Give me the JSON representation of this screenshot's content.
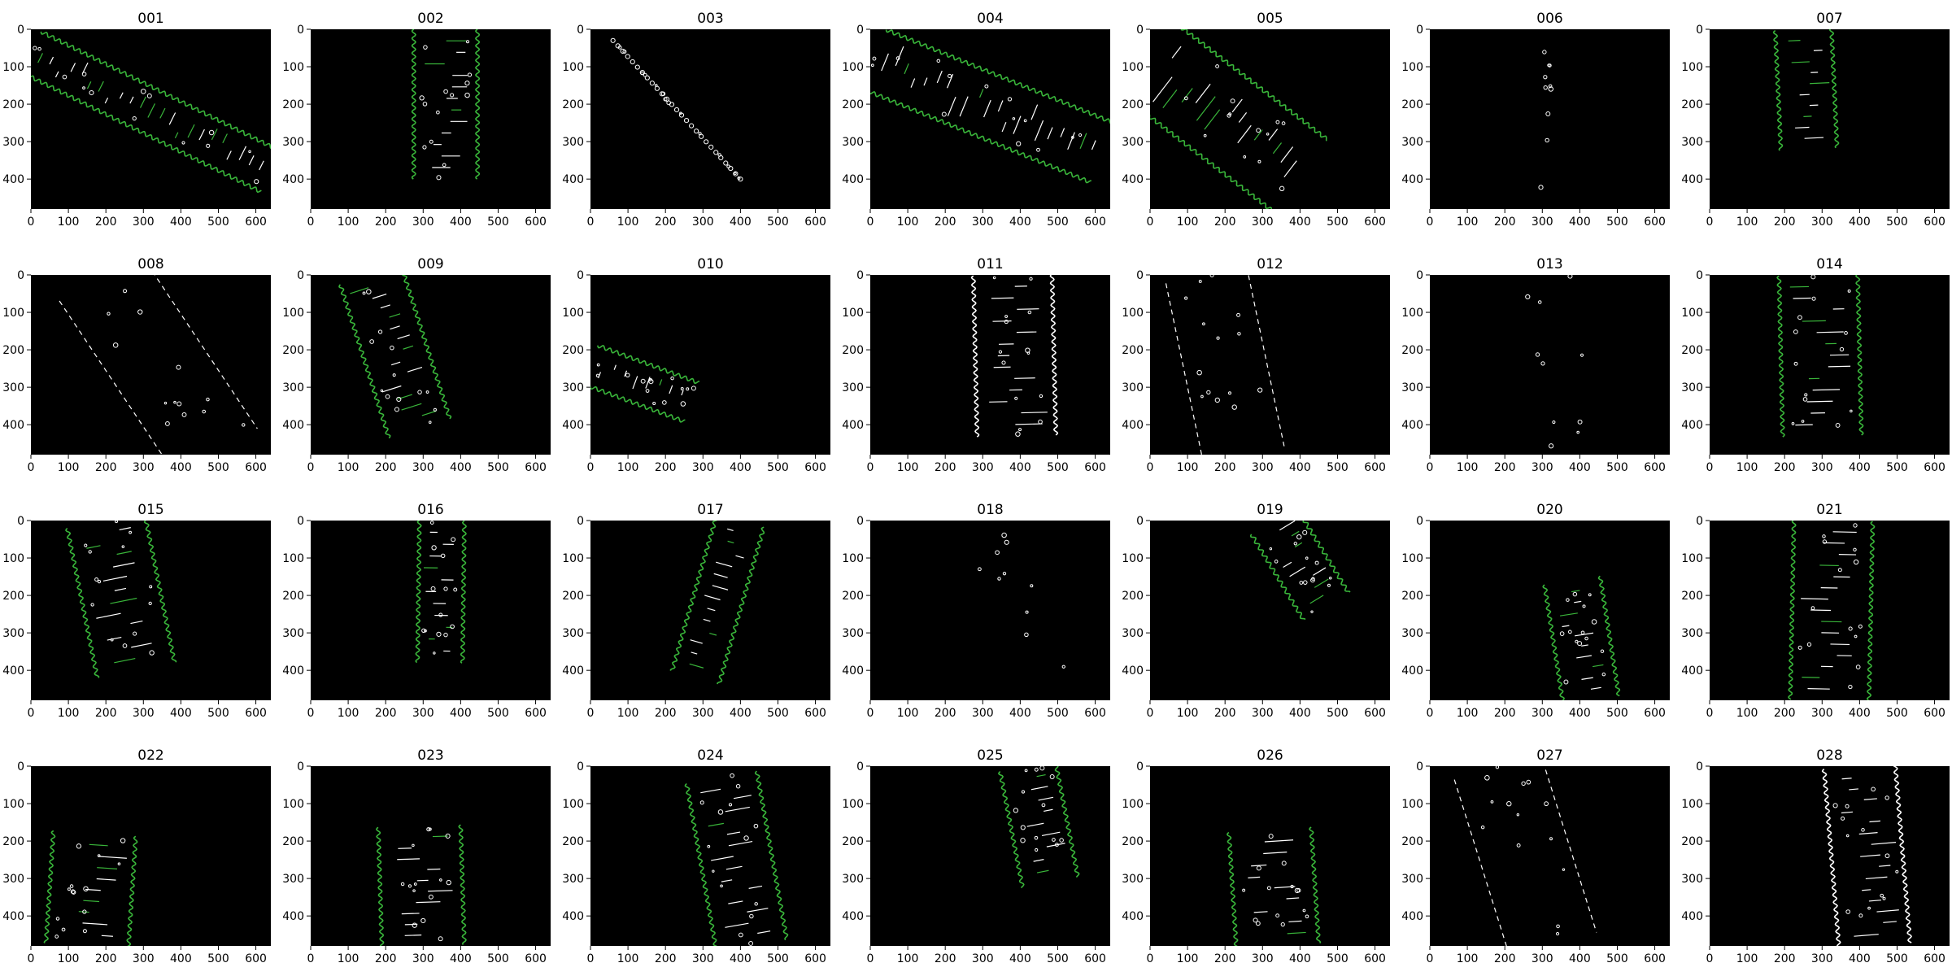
{
  "figure": {
    "background": "#ffffff",
    "panel_background": "#000000",
    "edge_color": "#ffffff",
    "contour_color": "#39b53a",
    "x_ticks": [
      "0",
      "100",
      "200",
      "300",
      "400",
      "500",
      "600"
    ],
    "y_ticks": [
      "0",
      "100",
      "200",
      "300",
      "400"
    ],
    "x_range": [
      0,
      640
    ],
    "y_range": [
      480,
      0
    ],
    "panels": [
      {
        "title": "001",
        "shape": "band",
        "pts": [
          [
            0,
            60
          ],
          [
            640,
            380
          ]
        ],
        "w": 120,
        "green": true,
        "dots": true
      },
      {
        "title": "002",
        "shape": "band",
        "pts": [
          [
            360,
            0
          ],
          [
            360,
            400
          ]
        ],
        "w": 170,
        "green": true,
        "dots": true
      },
      {
        "title": "003",
        "shape": "dots",
        "pts": [
          [
            60,
            30
          ],
          [
            400,
            400
          ]
        ],
        "w": 10,
        "green": false,
        "dots": true
      },
      {
        "title": "004",
        "shape": "band",
        "pts": [
          [
            10,
            80
          ],
          [
            620,
            330
          ]
        ],
        "w": 170,
        "green": true,
        "dots": true
      },
      {
        "title": "005",
        "shape": "band",
        "pts": [
          [
            10,
            90
          ],
          [
            400,
            390
          ]
        ],
        "w": 240,
        "green": true,
        "dots": true
      },
      {
        "title": "006",
        "shape": "sparse",
        "pts": [
          [
            320,
            60
          ],
          [
            300,
            460
          ]
        ],
        "w": 20,
        "green": false,
        "dots": true
      },
      {
        "title": "007",
        "shape": "band",
        "pts": [
          [
            250,
            0
          ],
          [
            265,
            320
          ]
        ],
        "w": 150,
        "green": true,
        "dots": false
      },
      {
        "title": "008",
        "shape": "lines",
        "pts": [
          [
            180,
            0
          ],
          [
            500,
            480
          ]
        ],
        "w": 250,
        "green": false,
        "dots": true
      },
      {
        "title": "009",
        "shape": "band",
        "pts": [
          [
            160,
            0
          ],
          [
            290,
            410
          ]
        ],
        "w": 170,
        "green": true,
        "dots": true
      },
      {
        "title": "010",
        "shape": "band",
        "pts": [
          [
            0,
            240
          ],
          [
            270,
            340
          ]
        ],
        "w": 110,
        "green": true,
        "dots": true
      },
      {
        "title": "011",
        "shape": "band",
        "pts": [
          [
            380,
            0
          ],
          [
            390,
            430
          ]
        ],
        "w": 210,
        "green": false,
        "dots": true
      },
      {
        "title": "012",
        "shape": "lines",
        "pts": [
          [
            150,
            0
          ],
          [
            250,
            480
          ]
        ],
        "w": 220,
        "green": false,
        "dots": true
      },
      {
        "title": "013",
        "shape": "sparse",
        "pts": [
          [
            330,
            0
          ],
          [
            390,
            480
          ]
        ],
        "w": 120,
        "green": false,
        "dots": true
      },
      {
        "title": "014",
        "shape": "band",
        "pts": [
          [
            290,
            0
          ],
          [
            300,
            430
          ]
        ],
        "w": 210,
        "green": true,
        "dots": true
      },
      {
        "title": "015",
        "shape": "band",
        "pts": [
          [
            200,
            0
          ],
          [
            280,
            400
          ]
        ],
        "w": 210,
        "green": true,
        "dots": true
      },
      {
        "title": "016",
        "shape": "band",
        "pts": [
          [
            350,
            0
          ],
          [
            345,
            380
          ]
        ],
        "w": 120,
        "green": true,
        "dots": true
      },
      {
        "title": "017",
        "shape": "band",
        "pts": [
          [
            400,
            0
          ],
          [
            280,
            420
          ]
        ],
        "w": 130,
        "green": true,
        "dots": false
      },
      {
        "title": "018",
        "shape": "sparse",
        "pts": [
          [
            300,
            50
          ],
          [
            500,
            440
          ]
        ],
        "w": 80,
        "green": false,
        "dots": true
      },
      {
        "title": "019",
        "shape": "band",
        "pts": [
          [
            330,
            0
          ],
          [
            470,
            230
          ]
        ],
        "w": 140,
        "green": true,
        "dots": true
      },
      {
        "title": "020",
        "shape": "band",
        "pts": [
          [
            380,
            160
          ],
          [
            430,
            480
          ]
        ],
        "w": 150,
        "green": true,
        "dots": true
      },
      {
        "title": "021",
        "shape": "band",
        "pts": [
          [
            330,
            0
          ],
          [
            320,
            480
          ]
        ],
        "w": 210,
        "green": true,
        "dots": true
      },
      {
        "title": "022",
        "shape": "band",
        "pts": [
          [
            170,
            180
          ],
          [
            150,
            480
          ]
        ],
        "w": 220,
        "green": true,
        "dots": true
      },
      {
        "title": "023",
        "shape": "band",
        "pts": [
          [
            290,
            160
          ],
          [
            300,
            480
          ]
        ],
        "w": 220,
        "green": true,
        "dots": true
      },
      {
        "title": "024",
        "shape": "band",
        "pts": [
          [
            350,
            30
          ],
          [
            430,
            480
          ]
        ],
        "w": 190,
        "green": true,
        "dots": true
      },
      {
        "title": "025",
        "shape": "band",
        "pts": [
          [
            420,
            0
          ],
          [
            480,
            310
          ]
        ],
        "w": 150,
        "green": true,
        "dots": true
      },
      {
        "title": "026",
        "shape": "band",
        "pts": [
          [
            320,
            170
          ],
          [
            340,
            480
          ]
        ],
        "w": 220,
        "green": true,
        "dots": true
      },
      {
        "title": "027",
        "shape": "lines",
        "pts": [
          [
            180,
            0
          ],
          [
            330,
            480
          ]
        ],
        "w": 240,
        "green": false,
        "dots": true
      },
      {
        "title": "028",
        "shape": "band",
        "pts": [
          [
            400,
            0
          ],
          [
            440,
            480
          ]
        ],
        "w": 190,
        "green": false,
        "dots": true
      }
    ]
  }
}
